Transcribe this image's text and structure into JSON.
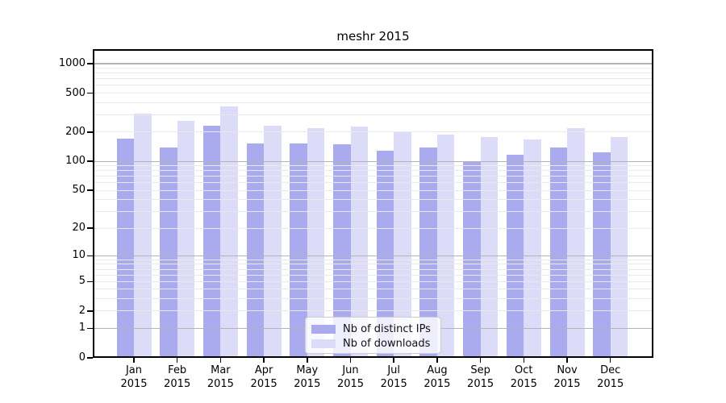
{
  "title": "meshr 2015",
  "chart_data": {
    "type": "bar",
    "title": "meshr 2015",
    "categories": [
      "Jan 2015",
      "Feb 2015",
      "Mar 2015",
      "Apr 2015",
      "May 2015",
      "Jun 2015",
      "Jul 2015",
      "Aug 2015",
      "Sep 2015",
      "Oct 2015",
      "Nov 2015",
      "Dec 2015"
    ],
    "series": [
      {
        "name": "Nb of distinct IPs",
        "color": "#aaaaee",
        "values": [
          172,
          139,
          233,
          153,
          153,
          150,
          129,
          139,
          100,
          117,
          139,
          124
        ]
      },
      {
        "name": "Nb of downloads",
        "color": "#dcdcf8",
        "values": [
          310,
          261,
          367,
          232,
          220,
          228,
          200,
          188,
          178,
          168,
          219,
          178
        ]
      }
    ],
    "xlabel": "",
    "ylabel": "",
    "y_scale": "log1p",
    "y_ticks": [
      0,
      1,
      2,
      5,
      10,
      20,
      50,
      100,
      200,
      500,
      1000
    ],
    "y_major_gridlines": [
      1,
      10,
      100,
      1000
    ],
    "ylim": [
      0,
      1400
    ],
    "grid": true,
    "legend_position": "lower center",
    "grid_major_color": "#b4b4b4",
    "grid_minor_color": "#e9e9e9",
    "background_color": "#ffffff"
  }
}
